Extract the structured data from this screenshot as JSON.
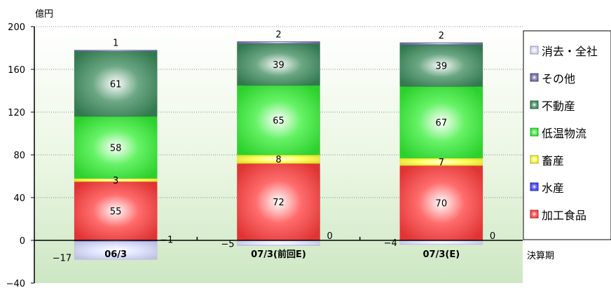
{
  "chart_data": {
    "type": "bar",
    "stacked": true,
    "ylabel": "億円",
    "xlabel": "決算期",
    "ylim": [
      -40,
      200
    ],
    "yticks": [
      -40,
      0,
      40,
      80,
      120,
      160,
      200
    ],
    "grid": true,
    "legend_position": "right",
    "categories": [
      "06/3",
      "07/3(前回E)",
      "07/3(E)"
    ],
    "series": [
      {
        "name": "加工食品",
        "color": "#ff3b3b",
        "values": [
          55,
          72,
          70
        ]
      },
      {
        "name": "水産",
        "color": "#3b3bff",
        "values": [
          -1,
          0,
          0
        ]
      },
      {
        "name": "畜産",
        "color": "#ffff33",
        "values": [
          3,
          8,
          7
        ]
      },
      {
        "name": "低温物流",
        "color": "#33ee33",
        "values": [
          58,
          65,
          67
        ]
      },
      {
        "name": "不動産",
        "color": "#3a8a5a",
        "values": [
          61,
          39,
          39
        ]
      },
      {
        "name": "その他",
        "color": "#6a6aa8",
        "values": [
          1,
          2,
          2
        ]
      },
      {
        "name": "消去・全社",
        "color": "#d8dcff",
        "values": [
          -17,
          -5,
          -4
        ]
      }
    ],
    "data_labels": [
      {
        "series": 6,
        "category": 0,
        "text": "−17"
      },
      {
        "series": 1,
        "category": 0,
        "text": "−1"
      },
      {
        "series": 0,
        "category": 0,
        "text": "55"
      },
      {
        "series": 2,
        "category": 0,
        "text": "3"
      },
      {
        "series": 3,
        "category": 0,
        "text": "58"
      },
      {
        "series": 4,
        "category": 0,
        "text": "61"
      },
      {
        "series": 5,
        "category": 0,
        "text": "1"
      },
      {
        "series": 6,
        "category": 1,
        "text": "−5"
      },
      {
        "series": 1,
        "category": 1,
        "text": "0"
      },
      {
        "series": 0,
        "category": 1,
        "text": "72"
      },
      {
        "series": 2,
        "category": 1,
        "text": "8"
      },
      {
        "series": 3,
        "category": 1,
        "text": "65"
      },
      {
        "series": 4,
        "category": 1,
        "text": "39"
      },
      {
        "series": 5,
        "category": 1,
        "text": "2"
      },
      {
        "series": 6,
        "category": 2,
        "text": "−4"
      },
      {
        "series": 1,
        "category": 2,
        "text": "0"
      },
      {
        "series": 0,
        "category": 2,
        "text": "70"
      },
      {
        "series": 2,
        "category": 2,
        "text": "7"
      },
      {
        "series": 3,
        "category": 2,
        "text": "67"
      },
      {
        "series": 4,
        "category": 2,
        "text": "39"
      },
      {
        "series": 5,
        "category": 2,
        "text": "2"
      }
    ]
  }
}
